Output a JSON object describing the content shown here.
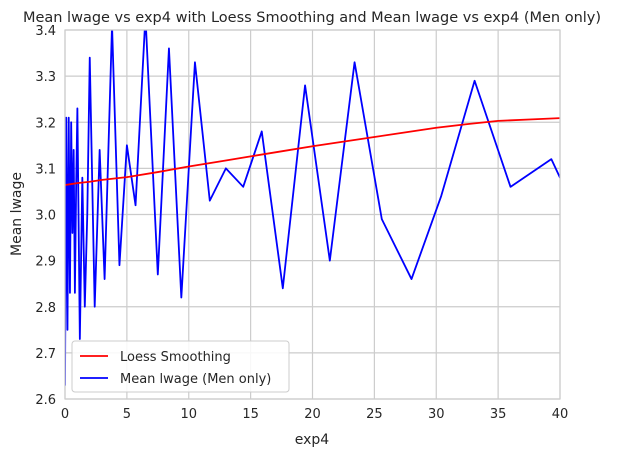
{
  "chart_data": {
    "type": "line",
    "title": "Mean lwage vs exp4 with Loess Smoothing and Mean lwage vs exp4 (Men only)",
    "xlabel": "exp4",
    "ylabel": "Mean lwage",
    "xlim": [
      0,
      40
    ],
    "ylim": [
      2.6,
      3.4
    ],
    "xticks": [
      "0",
      "5",
      "10",
      "15",
      "20",
      "25",
      "30",
      "35",
      "40"
    ],
    "yticks": [
      "2.6",
      "2.7",
      "2.8",
      "2.9",
      "3.0",
      "3.1",
      "3.2",
      "3.3",
      "3.4"
    ],
    "grid": true,
    "legend_position": "lower-left",
    "series": [
      {
        "name": "Loess Smoothing",
        "color": "#ff0000",
        "x": [
          0.0,
          0.5,
          1.0,
          2.0,
          3.0,
          4.0,
          5.0,
          7.5,
          10.0,
          12.5,
          15.0,
          17.5,
          20.0,
          22.5,
          25.0,
          27.5,
          30.0,
          32.5,
          35.0,
          37.5,
          40.0
        ],
        "y": [
          3.064,
          3.066,
          3.068,
          3.071,
          3.075,
          3.078,
          3.081,
          3.092,
          3.104,
          3.115,
          3.126,
          3.137,
          3.148,
          3.158,
          3.168,
          3.178,
          3.188,
          3.196,
          3.203,
          3.206,
          3.209
        ]
      },
      {
        "name": "Mean lwage (Men only)",
        "color": "#0000ff",
        "x": [
          0.0,
          0.1,
          0.2,
          0.3,
          0.4,
          0.5,
          0.6,
          0.7,
          0.8,
          0.9,
          1.0,
          1.2,
          1.4,
          1.6,
          1.8,
          2.0,
          2.4,
          2.8,
          3.2,
          3.8,
          4.4,
          5.0,
          5.7,
          6.5,
          7.5,
          8.4,
          9.4,
          10.5,
          11.7,
          13.0,
          14.4,
          15.9,
          17.6,
          19.4,
          21.4,
          23.4,
          25.6,
          28.0,
          30.4,
          33.1,
          36.0,
          39.3,
          40.0
        ],
        "y": [
          2.63,
          3.21,
          2.75,
          3.21,
          2.83,
          3.2,
          2.96,
          3.14,
          2.83,
          3.06,
          3.23,
          2.73,
          3.08,
          2.8,
          3.0,
          3.34,
          2.8,
          3.14,
          2.86,
          3.41,
          2.89,
          3.15,
          3.02,
          3.43,
          2.87,
          3.36,
          2.82,
          3.33,
          3.03,
          3.1,
          3.06,
          3.18,
          2.84,
          3.28,
          2.9,
          3.33,
          2.99,
          2.86,
          3.04,
          3.29,
          3.06,
          3.12,
          3.08
        ]
      }
    ]
  }
}
